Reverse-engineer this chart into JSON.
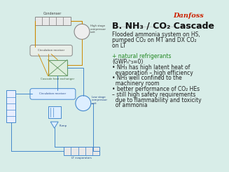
{
  "bg_color": "#d8ede8",
  "diagram_bg": "#d8ede8",
  "title": "B. NH₃ / CO₂ Cascade",
  "title_fontsize": 9,
  "title_bold": true,
  "danfoss_color": "#cc2200",
  "text_color": "#222222",
  "body_lines": [
    "Flooded ammonia system on HS,",
    "pumped CO₂ on MT and DX CO₂",
    "on LT",
    "",
    "+ natural refrigerants",
    "(GWPₙʰ₃=0)",
    "• NH₃ has high latent heat of",
    "  evaporation – high efficiency",
    "• NH₃ well confined to the",
    "  machinery room",
    "• better performance of CO₂ HEs",
    "– still high safety requirements",
    "  due to flammability and toxicity",
    "  of ammonia"
  ],
  "body_fontsize": 5.5,
  "diagram_line_color_nh3": "#cc8800",
  "diagram_line_color_co2": "#4488cc",
  "diagram_line_color_gray": "#888888",
  "condenser_label": "Condenser",
  "hs_compressor_label": "High stage\ncompressor\nunit",
  "circulation_receiver1": "Circulation receiver",
  "cascade_he_label": "Cascade heat exchanger",
  "circulation_receiver2": "Circulation receiver",
  "ls_compressor_label": "Low stage\ncompressor\nunit",
  "pump_label": "Pump",
  "lt_evaporator_label": "LT evaporators"
}
